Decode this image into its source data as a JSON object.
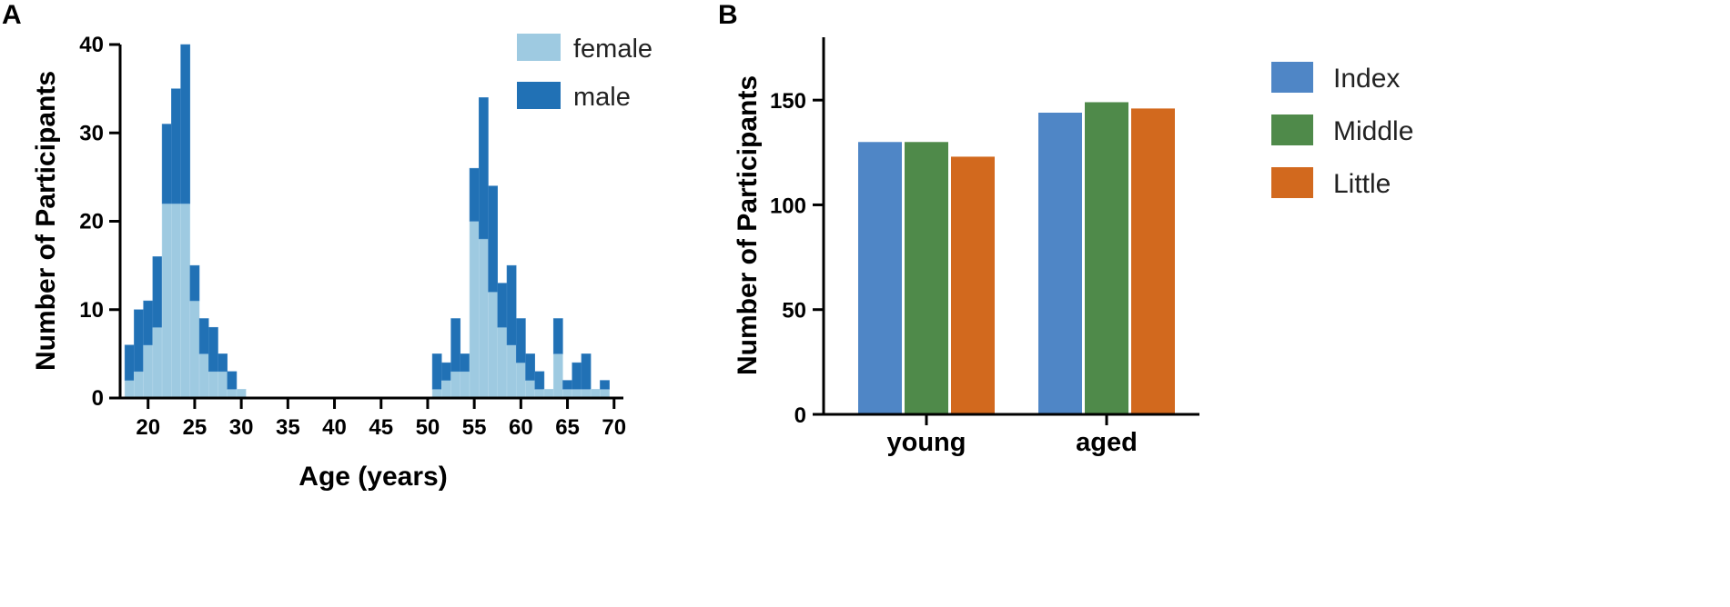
{
  "panels": {
    "a": "A",
    "b": "B"
  },
  "colors": {
    "female": "#9ecae1",
    "male": "#2171b5",
    "index": "#4f86c6",
    "middle": "#4f8a4a",
    "little": "#d2691e",
    "axis": "#000000"
  },
  "chart_data": [
    {
      "id": "A",
      "type": "bar",
      "stacked": true,
      "title": "",
      "xlabel": "Age (years)",
      "ylabel": "Number of Participants",
      "xlim": [
        17,
        71
      ],
      "ylim": [
        0,
        40
      ],
      "xticks": [
        20,
        25,
        30,
        35,
        40,
        45,
        50,
        55,
        60,
        65,
        70
      ],
      "yticks": [
        0,
        10,
        20,
        30,
        40
      ],
      "legend": [
        "female",
        "male"
      ],
      "legend_position": "top-right",
      "x": [
        18,
        19,
        20,
        21,
        22,
        23,
        24,
        25,
        26,
        27,
        28,
        29,
        30,
        51,
        52,
        53,
        54,
        55,
        56,
        57,
        58,
        59,
        60,
        61,
        62,
        63,
        64,
        65,
        66,
        67,
        68,
        69
      ],
      "series": [
        {
          "name": "female",
          "values": [
            2,
            3,
            6,
            8,
            22,
            22,
            22,
            11,
            5,
            3,
            3,
            1,
            1,
            1,
            2,
            3,
            3,
            20,
            18,
            12,
            8,
            6,
            4,
            2,
            1,
            1,
            5,
            1,
            1,
            1,
            1,
            1
          ]
        },
        {
          "name": "male",
          "values": [
            4,
            7,
            5,
            8,
            9,
            13,
            18,
            4,
            4,
            5,
            2,
            2,
            0,
            4,
            2,
            6,
            2,
            6,
            16,
            12,
            5,
            9,
            5,
            3,
            2,
            0,
            4,
            1,
            3,
            4,
            0,
            1
          ]
        }
      ]
    },
    {
      "id": "B",
      "type": "bar",
      "stacked": false,
      "title": "",
      "xlabel": "",
      "ylabel": "Number of Participants",
      "ylim": [
        0,
        180
      ],
      "yticks": [
        0,
        50,
        100,
        150
      ],
      "categories": [
        "young",
        "aged"
      ],
      "legend": [
        "Index",
        "Middle",
        "Little"
      ],
      "legend_position": "top-right",
      "series": [
        {
          "name": "Index",
          "values": [
            130,
            144
          ]
        },
        {
          "name": "Middle",
          "values": [
            130,
            149
          ]
        },
        {
          "name": "Little",
          "values": [
            123,
            146
          ]
        }
      ]
    }
  ]
}
